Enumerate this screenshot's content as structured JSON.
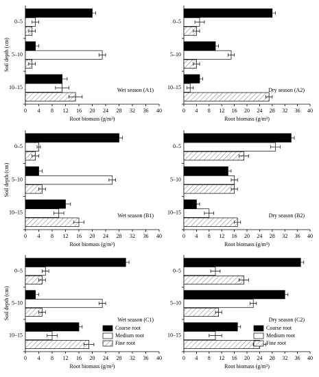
{
  "chart_data": [
    {
      "type": "bar",
      "orientation": "horizontal",
      "annotation": "Wet season (A1)",
      "ylabel": "Soil depth (cm)",
      "xlabel": "Root biomass (g/m³)",
      "categories": [
        "0–5",
        "5–10",
        "10–15"
      ],
      "xlim": [
        0,
        40
      ],
      "xticks": [
        0,
        4,
        8,
        12,
        16,
        20,
        24,
        28,
        32,
        36,
        40
      ],
      "series": [
        {
          "color": "#000000",
          "values": [
            20,
            3,
            11
          ],
          "errors": [
            1,
            1,
            1.5
          ]
        },
        {
          "color": "#ffffff",
          "values": [
            3,
            23,
            11
          ],
          "errors": [
            1,
            1,
            2
          ]
        },
        {
          "color": "#ffffff",
          "pattern": "hatch",
          "values": [
            2,
            2,
            15
          ],
          "errors": [
            1,
            1,
            2
          ]
        }
      ]
    },
    {
      "type": "bar",
      "orientation": "horizontal",
      "annotation": "Dry season (A2)",
      "xlabel": "Root biomass (g/m³)",
      "categories": [
        "0–5",
        "5–10",
        "10–15"
      ],
      "xlim": [
        0,
        40
      ],
      "xticks": [
        0,
        4,
        8,
        12,
        16,
        20,
        24,
        28,
        32,
        36,
        40
      ],
      "series": [
        {
          "color": "#000000",
          "values": [
            28,
            10,
            5
          ],
          "errors": [
            1,
            1,
            1
          ]
        },
        {
          "color": "#ffffff",
          "values": [
            5,
            15,
            2
          ],
          "errors": [
            1.5,
            1,
            1
          ]
        },
        {
          "color": "#ffffff",
          "pattern": "hatch",
          "values": [
            4,
            4,
            27
          ],
          "errors": [
            1,
            1,
            1
          ]
        }
      ]
    },
    {
      "type": "bar",
      "orientation": "horizontal",
      "annotation": "Wet season (B1)",
      "ylabel": "Soil depth (cm)",
      "xlabel": "Root biomass (g/m³)",
      "categories": [
        "0–5",
        "5–10",
        "10–15"
      ],
      "xlim": [
        0,
        40
      ],
      "xticks": [
        0,
        4,
        8,
        12,
        16,
        20,
        24,
        28,
        32,
        36,
        40
      ],
      "series": [
        {
          "color": "#000000",
          "values": [
            28,
            4,
            12
          ],
          "errors": [
            1,
            1,
            1.5
          ]
        },
        {
          "color": "#ffffff",
          "values": [
            4,
            26,
            10
          ],
          "errors": [
            0.5,
            1,
            1.5
          ]
        },
        {
          "color": "#ffffff",
          "pattern": "hatch",
          "values": [
            3,
            5,
            16
          ],
          "errors": [
            1,
            1,
            1.5
          ]
        }
      ]
    },
    {
      "type": "bar",
      "orientation": "horizontal",
      "annotation": "Dry season (B2)",
      "xlabel": "Root biomass (g/m³)",
      "categories": [
        "0–5",
        "5–10",
        "10–15"
      ],
      "xlim": [
        0,
        40
      ],
      "xticks": [
        0,
        4,
        8,
        12,
        16,
        20,
        24,
        28,
        32,
        36,
        40
      ],
      "series": [
        {
          "color": "#000000",
          "values": [
            34,
            14,
            4
          ],
          "errors": [
            1,
            1,
            1
          ]
        },
        {
          "color": "#ffffff",
          "values": [
            29,
            16,
            8
          ],
          "errors": [
            1.5,
            1,
            1.5
          ]
        },
        {
          "color": "#ffffff",
          "pattern": "hatch",
          "values": [
            19,
            16,
            17
          ],
          "errors": [
            1.5,
            1,
            1
          ]
        }
      ]
    },
    {
      "type": "bar",
      "orientation": "horizontal",
      "annotation": "Wet season (C1)",
      "ylabel": "Soil depth (cm)",
      "xlabel": "Root biomass (g/m³)",
      "legend": "lower right",
      "categories": [
        "0–5",
        "5–10",
        "10–15"
      ],
      "xlim": [
        0,
        40
      ],
      "xticks": [
        0,
        4,
        8,
        12,
        16,
        20,
        24,
        28,
        32,
        36,
        40
      ],
      "series": [
        {
          "name": "Coarse root",
          "color": "#000000",
          "values": [
            30,
            3,
            16
          ],
          "errors": [
            1,
            1,
            1
          ]
        },
        {
          "name": "Medium root",
          "color": "#ffffff",
          "values": [
            6,
            23,
            8
          ],
          "errors": [
            1,
            1,
            1.5
          ]
        },
        {
          "name": "Fine root",
          "color": "#ffffff",
          "pattern": "hatch",
          "values": [
            5,
            5,
            19
          ],
          "errors": [
            1,
            1,
            1.5
          ]
        }
      ]
    },
    {
      "type": "bar",
      "orientation": "horizontal",
      "annotation": "Dry season (C2)",
      "xlabel": "Root biomass (g/m³)",
      "legend": "lower right",
      "categories": [
        "0–5",
        "5–10",
        "10–15"
      ],
      "xlim": [
        0,
        40
      ],
      "xticks": [
        0,
        4,
        8,
        12,
        16,
        20,
        24,
        28,
        32,
        36,
        40
      ],
      "series": [
        {
          "name": "Coarse root",
          "color": "#000000",
          "values": [
            37,
            32,
            17
          ],
          "errors": [
            1,
            1,
            1
          ]
        },
        {
          "name": "Medium root",
          "color": "#ffffff",
          "values": [
            10,
            22,
            10
          ],
          "errors": [
            1.5,
            1,
            2
          ]
        },
        {
          "name": "Fine root",
          "color": "#ffffff",
          "pattern": "hatch",
          "values": [
            19,
            11,
            24
          ],
          "errors": [
            1.5,
            1,
            2
          ]
        }
      ]
    }
  ]
}
